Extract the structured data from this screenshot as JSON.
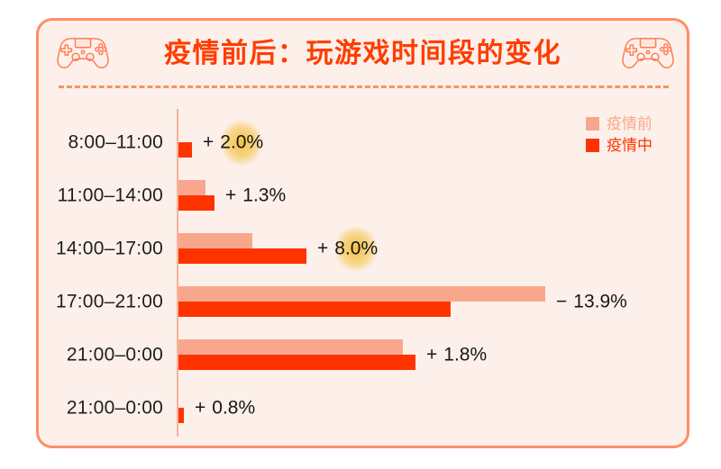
{
  "header": {
    "title": "疫情前后：玩游戏时间段的变化",
    "left_icon": "game-controller",
    "right_icon": "game-controller"
  },
  "legend": {
    "position": "top-right",
    "items": [
      {
        "label": "疫情前",
        "color": "#F9A78C"
      },
      {
        "label": "疫情中",
        "color": "#FF3300"
      }
    ]
  },
  "chart_data": {
    "type": "bar",
    "orientation": "horizontal",
    "title": "疫情前后：玩游戏时间段的变化",
    "categories": [
      "8:00–11:00",
      "11:00–14:00",
      "14:00–17:00",
      "17:00–21:00",
      "21:00–0:00",
      "21:00–0:00"
    ],
    "series": [
      {
        "name": "疫情前",
        "color": "#F9A78C",
        "values": [
          0,
          4.0,
          10.8,
          53.9,
          33.0,
          0
        ]
      },
      {
        "name": "疫情中",
        "color": "#FF3300",
        "values": [
          2.0,
          5.3,
          18.8,
          40.0,
          34.8,
          0.8
        ]
      }
    ],
    "deltas": [
      {
        "sign": "+",
        "value": "2.0%",
        "highlight": true
      },
      {
        "sign": "+",
        "value": "1.3%",
        "highlight": false
      },
      {
        "sign": "+",
        "value": "8.0%",
        "highlight": true
      },
      {
        "sign": "−",
        "value": "13.9%",
        "highlight": false
      },
      {
        "sign": "+",
        "value": "1.8%",
        "highlight": false
      },
      {
        "sign": "+",
        "value": "0.8%",
        "highlight": false
      }
    ],
    "xlim": [
      0,
      60
    ],
    "grid": false,
    "legend_position": "top-right"
  },
  "colors": {
    "card_background": "#FDF0EA",
    "card_border": "#FF8E66",
    "title": "#FF3D00",
    "series_before": "#F9A78C",
    "series_during": "#FF3300",
    "axis_line": "#F5B29C",
    "category_text": "#1E1E1E",
    "value_text": "#161616",
    "highlight_glow": "#F2C03D"
  }
}
